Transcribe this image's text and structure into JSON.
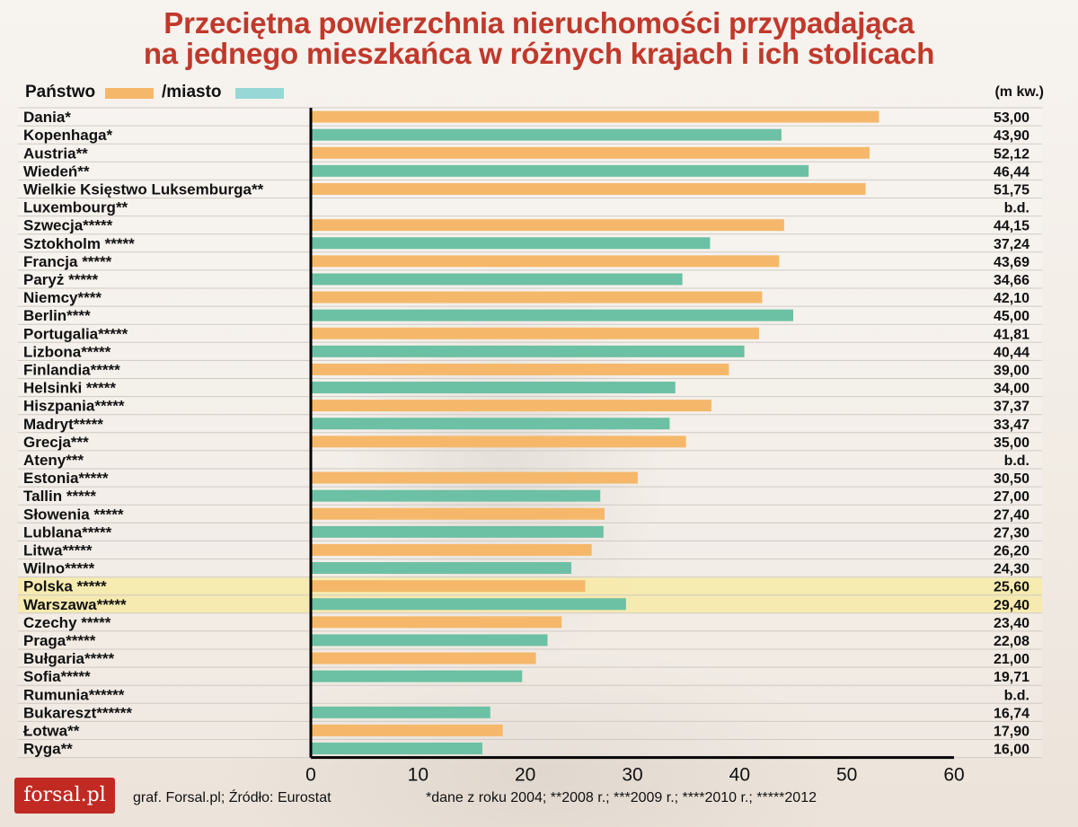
{
  "title_line1": "Przeciętna powierzchnia nieruchomości przypadająca",
  "title_line2": "na jednego mieszkańca w różnych krajach i ich stolicach",
  "legend": {
    "country": "Państwo",
    "city": "/miasto"
  },
  "unit": "(m kw.)",
  "footer": {
    "credit": "graf. Forsal.pl; Źródło: Eurostat",
    "notes": "*dane z roku 2004;  **2008 r.;  ***2009 r.;  ****2010 r.;  *****2012"
  },
  "logo": "forsal.pl",
  "colors": {
    "country": "#f5b86a",
    "city": "#6cc0a3",
    "highlight": "#f7eaa6",
    "title": "#c0392b"
  },
  "chart_data": {
    "type": "bar",
    "orientation": "horizontal",
    "xlim": [
      0,
      60
    ],
    "xticks": [
      0,
      10,
      20,
      30,
      40,
      50,
      60
    ],
    "highlight_labels": [
      "Polska *****",
      "Warszawa*****"
    ],
    "rows": [
      {
        "label": "Dania*",
        "kind": "country",
        "value": 53.0,
        "value_label": "53,00"
      },
      {
        "label": "Kopenhaga*",
        "kind": "city",
        "value": 43.9,
        "value_label": "43,90"
      },
      {
        "label": "Austria**",
        "kind": "country",
        "value": 52.12,
        "value_label": "52,12"
      },
      {
        "label": "Wiedeń**",
        "kind": "city",
        "value": 46.44,
        "value_label": "46,44"
      },
      {
        "label": "Wielkie Księstwo Luksemburga**",
        "kind": "country",
        "value": 51.75,
        "value_label": "51,75"
      },
      {
        "label": "Luxembourg**",
        "kind": "city",
        "value": null,
        "value_label": "b.d."
      },
      {
        "label": "Szwecja*****",
        "kind": "country",
        "value": 44.15,
        "value_label": "44,15"
      },
      {
        "label": "Sztokholm *****",
        "kind": "city",
        "value": 37.24,
        "value_label": "37,24"
      },
      {
        "label": "Francja *****",
        "kind": "country",
        "value": 43.69,
        "value_label": "43,69"
      },
      {
        "label": "Paryż *****",
        "kind": "city",
        "value": 34.66,
        "value_label": "34,66"
      },
      {
        "label": "Niemcy****",
        "kind": "country",
        "value": 42.1,
        "value_label": "42,10"
      },
      {
        "label": "Berlin****",
        "kind": "city",
        "value": 45.0,
        "value_label": "45,00"
      },
      {
        "label": "Portugalia*****",
        "kind": "country",
        "value": 41.81,
        "value_label": "41,81"
      },
      {
        "label": "Lizbona*****",
        "kind": "city",
        "value": 40.44,
        "value_label": "40,44"
      },
      {
        "label": "Finlandia*****",
        "kind": "country",
        "value": 39.0,
        "value_label": "39,00"
      },
      {
        "label": "Helsinki *****",
        "kind": "city",
        "value": 34.0,
        "value_label": "34,00"
      },
      {
        "label": "Hiszpania*****",
        "kind": "country",
        "value": 37.37,
        "value_label": "37,37"
      },
      {
        "label": "Madryt*****",
        "kind": "city",
        "value": 33.47,
        "value_label": "33,47"
      },
      {
        "label": "Grecja***",
        "kind": "country",
        "value": 35.0,
        "value_label": "35,00"
      },
      {
        "label": "Ateny***",
        "kind": "city",
        "value": null,
        "value_label": "b.d."
      },
      {
        "label": "Estonia*****",
        "kind": "country",
        "value": 30.5,
        "value_label": "30,50"
      },
      {
        "label": "Tallin *****",
        "kind": "city",
        "value": 27.0,
        "value_label": "27,00"
      },
      {
        "label": "Słowenia *****",
        "kind": "country",
        "value": 27.4,
        "value_label": "27,40"
      },
      {
        "label": "Lublana*****",
        "kind": "city",
        "value": 27.3,
        "value_label": "27,30"
      },
      {
        "label": "Litwa*****",
        "kind": "country",
        "value": 26.2,
        "value_label": "26,20"
      },
      {
        "label": "Wilno*****",
        "kind": "city",
        "value": 24.3,
        "value_label": "24,30"
      },
      {
        "label": "Polska *****",
        "kind": "country",
        "value": 25.6,
        "value_label": "25,60"
      },
      {
        "label": "Warszawa*****",
        "kind": "city",
        "value": 29.4,
        "value_label": "29,40"
      },
      {
        "label": "Czechy *****",
        "kind": "country",
        "value": 23.4,
        "value_label": "23,40"
      },
      {
        "label": "Praga*****",
        "kind": "city",
        "value": 22.08,
        "value_label": "22,08"
      },
      {
        "label": "Bułgaria*****",
        "kind": "country",
        "value": 21.0,
        "value_label": "21,00"
      },
      {
        "label": "Sofia*****",
        "kind": "city",
        "value": 19.71,
        "value_label": "19,71"
      },
      {
        "label": "Rumunia******",
        "kind": "country",
        "value": null,
        "value_label": "b.d."
      },
      {
        "label": "Bukareszt******",
        "kind": "city",
        "value": 16.74,
        "value_label": "16,74"
      },
      {
        "label": "Łotwa**",
        "kind": "country",
        "value": 17.9,
        "value_label": "17,90"
      },
      {
        "label": "Ryga**",
        "kind": "city",
        "value": 16.0,
        "value_label": "16,00"
      }
    ]
  }
}
